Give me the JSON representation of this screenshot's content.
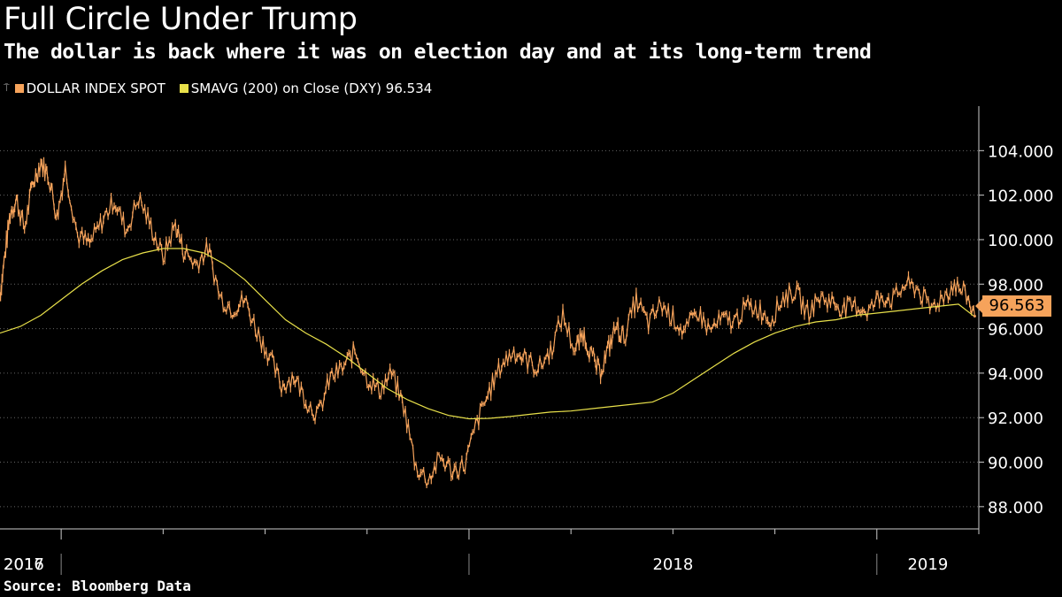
{
  "title": "Full Circle Under Trump",
  "subtitle": "The dollar is back where it was on election day and at its long-term trend",
  "legend": {
    "pin": "⍑",
    "series1": "DOLLAR INDEX SPOT",
    "series2": "SMAVG (200)  on Close (DXY) 96.534"
  },
  "source": "Source: Bloomberg Data",
  "colors": {
    "price": "#f6a35b",
    "sma": "#e8e04a",
    "grid": "#666666",
    "background": "#000000"
  },
  "chart_data": {
    "type": "line",
    "title": "Full Circle Under Trump",
    "ylim": [
      87,
      106
    ],
    "y_ticks": [
      "88.000",
      "90.000",
      "92.000",
      "94.000",
      "96.000",
      "98.000",
      "100.000",
      "102.000",
      "104.000"
    ],
    "x_range": [
      2016.85,
      2019.25
    ],
    "x_labels": [
      "2016",
      "2017",
      "2018",
      "2019"
    ],
    "last_value": "96.563",
    "series": [
      {
        "name": "DOLLAR INDEX SPOT",
        "x": [
          2016.85,
          2016.86,
          2016.875,
          2016.89,
          2016.91,
          2016.93,
          2016.95,
          2016.97,
          2016.99,
          2017.01,
          2017.04,
          2017.07,
          2017.1,
          2017.13,
          2017.16,
          2017.19,
          2017.22,
          2017.25,
          2017.28,
          2017.3,
          2017.33,
          2017.36,
          2017.39,
          2017.42,
          2017.45,
          2017.48,
          2017.51,
          2017.54,
          2017.57,
          2017.6,
          2017.63,
          2017.66,
          2017.69,
          2017.72,
          2017.75,
          2017.78,
          2017.81,
          2017.84,
          2017.87,
          2017.9,
          2017.93,
          2017.96,
          2017.99,
          2018.02,
          2018.05,
          2018.08,
          2018.11,
          2018.14,
          2018.17,
          2018.2,
          2018.23,
          2018.26,
          2018.28,
          2018.3,
          2018.32,
          2018.34,
          2018.36,
          2018.38,
          2018.41,
          2018.44,
          2018.47,
          2018.5,
          2018.53,
          2018.56,
          2018.59,
          2018.62,
          2018.65,
          2018.68,
          2018.71,
          2018.74,
          2018.77,
          2018.8,
          2018.83,
          2018.86,
          2018.89,
          2018.92,
          2018.95,
          2018.98,
          2019.01,
          2019.04,
          2019.07,
          2019.1,
          2019.13,
          2019.16,
          2019.19,
          2019.22,
          2019.24
        ],
        "values": [
          97.5,
          99.0,
          101.2,
          101.8,
          100.5,
          102.5,
          103.5,
          102.8,
          101.0,
          103.2,
          100.2,
          99.8,
          100.8,
          101.8,
          100.4,
          101.9,
          100.6,
          99.2,
          100.7,
          99.5,
          98.9,
          99.6,
          97.4,
          96.9,
          97.3,
          95.9,
          94.8,
          93.4,
          93.9,
          92.8,
          92.1,
          93.8,
          94.2,
          95.0,
          93.8,
          93.2,
          94.0,
          92.5,
          89.8,
          89.2,
          90.2,
          89.6,
          89.9,
          91.8,
          93.2,
          94.4,
          95.0,
          94.6,
          94.2,
          95.0,
          96.6,
          95.0,
          95.8,
          94.8,
          94.0,
          95.0,
          96.1,
          95.6,
          97.3,
          96.2,
          97.1,
          96.5,
          95.8,
          96.8,
          95.9,
          96.4,
          96.3,
          97.0,
          96.9,
          96.4,
          97.4,
          97.7,
          96.7,
          97.4,
          97.2,
          96.9,
          97.0,
          96.8,
          97.5,
          97.3,
          98.0,
          97.8,
          96.9,
          97.4,
          98.0,
          97.5,
          96.56
        ]
      },
      {
        "name": "SMAVG (200)",
        "x": [
          2016.85,
          2016.9,
          2016.95,
          2017.0,
          2017.05,
          2017.1,
          2017.15,
          2017.2,
          2017.25,
          2017.3,
          2017.35,
          2017.4,
          2017.45,
          2017.5,
          2017.55,
          2017.6,
          2017.65,
          2017.7,
          2017.75,
          2017.8,
          2017.85,
          2017.9,
          2017.95,
          2018.0,
          2018.05,
          2018.1,
          2018.15,
          2018.2,
          2018.25,
          2018.3,
          2018.35,
          2018.4,
          2018.45,
          2018.5,
          2018.55,
          2018.6,
          2018.65,
          2018.7,
          2018.75,
          2018.8,
          2018.85,
          2018.9,
          2018.95,
          2019.0,
          2019.05,
          2019.1,
          2019.15,
          2019.2,
          2019.24
        ],
        "values": [
          95.8,
          96.1,
          96.6,
          97.3,
          98.0,
          98.6,
          99.1,
          99.4,
          99.6,
          99.6,
          99.4,
          98.9,
          98.2,
          97.3,
          96.4,
          95.8,
          95.3,
          94.7,
          94.0,
          93.3,
          92.8,
          92.4,
          92.1,
          91.95,
          91.97,
          92.05,
          92.15,
          92.25,
          92.3,
          92.4,
          92.5,
          92.6,
          92.7,
          93.1,
          93.7,
          94.3,
          94.9,
          95.4,
          95.8,
          96.1,
          96.3,
          96.4,
          96.6,
          96.7,
          96.8,
          96.9,
          97.0,
          97.1,
          96.53
        ]
      }
    ]
  }
}
